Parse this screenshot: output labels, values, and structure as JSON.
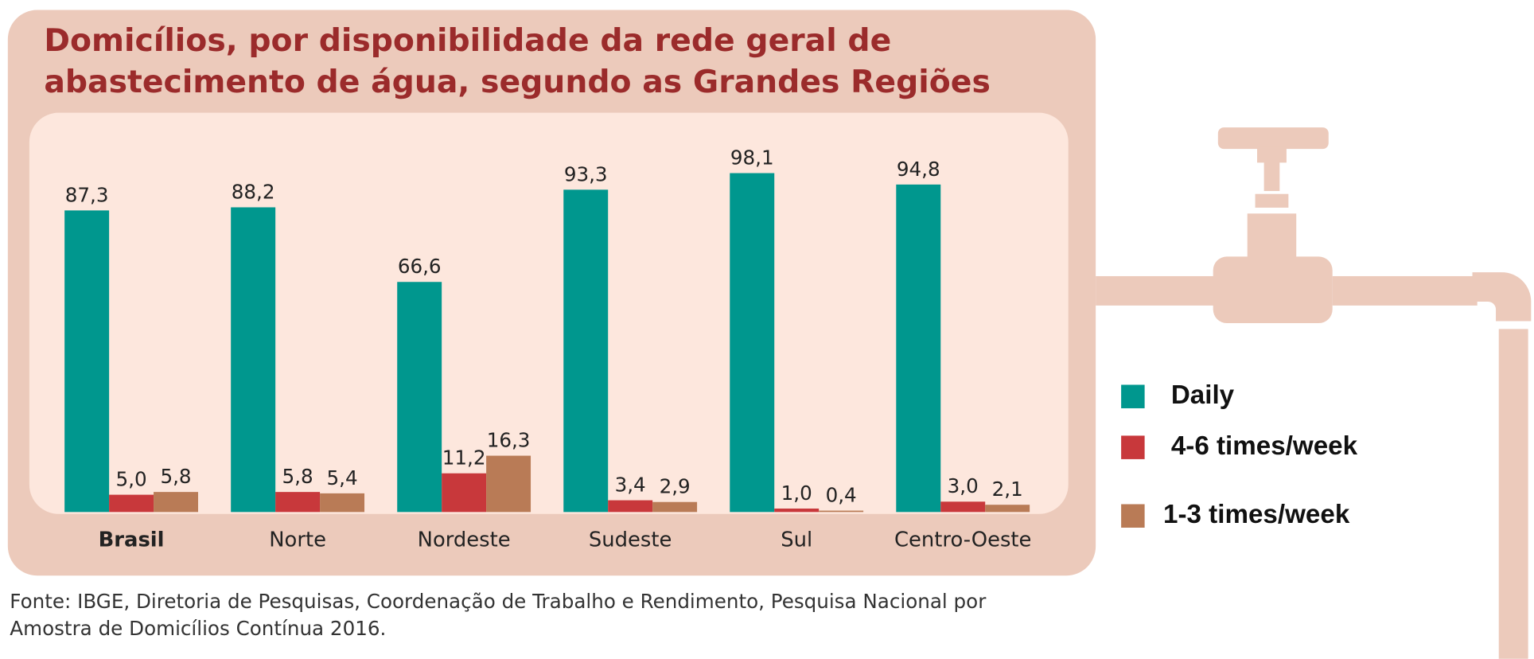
{
  "chart_data": {
    "type": "bar",
    "title": "Domicílios, por disponibilidade da rede geral de abastecimento de água, segundo as Grandes Regiões (%)",
    "categories": [
      "Brasil",
      "Norte",
      "Nordeste",
      "Sudeste",
      "Sul",
      "Centro-Oeste"
    ],
    "series": [
      {
        "name": "Daily",
        "color": "#00978e",
        "values": [
          87.3,
          88.2,
          66.6,
          93.3,
          98.1,
          94.8
        ],
        "value_labels": [
          "87,3",
          "88,2",
          "66,6",
          "93,3",
          "98,1",
          "94,8"
        ]
      },
      {
        "name": "4-6 times/week",
        "color": "#c8383b",
        "values": [
          5.0,
          5.8,
          11.2,
          3.4,
          1.0,
          3.0
        ],
        "value_labels": [
          "5,0",
          "5,8",
          "11,2",
          "3,4",
          "1,0",
          "3,0"
        ]
      },
      {
        "name": "1-3 times/week",
        "color": "#b97b56",
        "values": [
          5.8,
          5.4,
          16.3,
          2.9,
          0.4,
          2.1
        ],
        "value_labels": [
          "5,8",
          "5,4",
          "16,3",
          "2,9",
          "0,4",
          "2,1"
        ]
      }
    ],
    "ylim": [
      0,
      100
    ],
    "source": "Fonte: IBGE, Diretoria de Pesquisas, Coordenação de Trabalho e Rendimento, Pesquisa Nacional por Amostra de Domicílios Contínua 2016."
  }
}
